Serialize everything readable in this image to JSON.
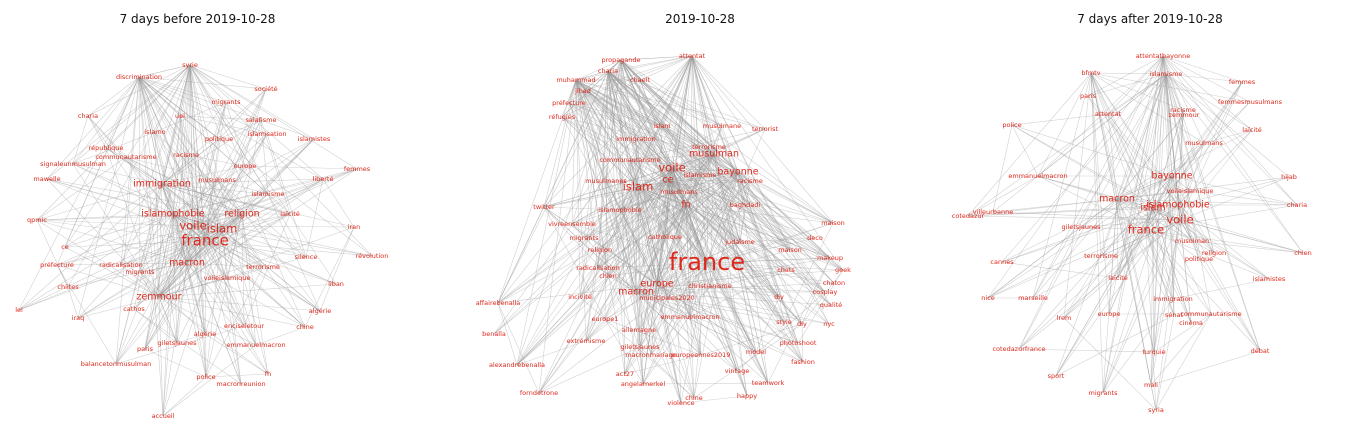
{
  "graphs": [
    {
      "title": "7 days before 2019-10-28",
      "nodes": [
        {
          "label": "syrie",
          "w": 1
        },
        {
          "label": "discrimination",
          "w": 1
        },
        {
          "label": "société",
          "w": 1
        },
        {
          "label": "migrants",
          "w": 1
        },
        {
          "label": "charia",
          "w": 1
        },
        {
          "label": "uel",
          "w": 1
        },
        {
          "label": "salafisme",
          "w": 1
        },
        {
          "label": "islamo",
          "w": 1
        },
        {
          "label": "politique",
          "w": 1
        },
        {
          "label": "islamisation",
          "w": 1
        },
        {
          "label": "islamistes",
          "w": 1
        },
        {
          "label": "république",
          "w": 1
        },
        {
          "label": "communautarisme",
          "w": 1
        },
        {
          "label": "racisme",
          "w": 1
        },
        {
          "label": "europe",
          "w": 1
        },
        {
          "label": "signaleunmusulman",
          "w": 1
        },
        {
          "label": "femmes",
          "w": 1
        },
        {
          "label": "mawelle",
          "w": 1
        },
        {
          "label": "immigration",
          "w": 2
        },
        {
          "label": "musulmans",
          "w": 1
        },
        {
          "label": "islamisme",
          "w": 1
        },
        {
          "label": "liberté",
          "w": 1
        },
        {
          "label": "laïcité",
          "w": 1
        },
        {
          "label": "islamophobie",
          "w": 2
        },
        {
          "label": "religion",
          "w": 2
        },
        {
          "label": "qpmic",
          "w": 1
        },
        {
          "label": "voile",
          "w": 3
        },
        {
          "label": "islam",
          "w": 3
        },
        {
          "label": "iran",
          "w": 1
        },
        {
          "label": "france",
          "w": 4
        },
        {
          "label": "ce",
          "w": 1
        },
        {
          "label": "préfecture",
          "w": 1
        },
        {
          "label": "radicalisation",
          "w": 1
        },
        {
          "label": "macron",
          "w": 2
        },
        {
          "label": "terrorisme",
          "w": 1
        },
        {
          "label": "silence",
          "w": 1
        },
        {
          "label": "révolution",
          "w": 1
        },
        {
          "label": "migrants",
          "w": 1
        },
        {
          "label": "voileislamique",
          "w": 1
        },
        {
          "label": "chiites",
          "w": 1
        },
        {
          "label": "zemmour",
          "w": 2
        },
        {
          "label": "liban",
          "w": 1
        },
        {
          "label": "cathos",
          "w": 1
        },
        {
          "label": "algérie",
          "w": 1
        },
        {
          "label": "iraq",
          "w": 1
        },
        {
          "label": "lei",
          "w": 1
        },
        {
          "label": "algérie",
          "w": 1
        },
        {
          "label": "enciseletour",
          "w": 1
        },
        {
          "label": "chine",
          "w": 1
        },
        {
          "label": "giletsjaunes",
          "w": 1
        },
        {
          "label": "emmanuelmacron",
          "w": 1
        },
        {
          "label": "paris",
          "w": 1
        },
        {
          "label": "balancetonmusulman",
          "w": 1
        },
        {
          "label": "fh",
          "w": 1
        },
        {
          "label": "police",
          "w": 1
        },
        {
          "label": "macronreunion",
          "w": 1
        },
        {
          "label": "accueil",
          "w": 1
        }
      ]
    },
    {
      "title": "2019-10-28",
      "nodes": [
        {
          "label": "attentat",
          "w": 1
        },
        {
          "label": "propagande",
          "w": 1
        },
        {
          "label": "charia",
          "w": 1
        },
        {
          "label": "muhammad",
          "w": 1
        },
        {
          "label": "chaelt",
          "w": 1
        },
        {
          "label": "jihad",
          "w": 1
        },
        {
          "label": "préfecture",
          "w": 1
        },
        {
          "label": "réfugiés",
          "w": 1
        },
        {
          "label": "islam",
          "w": 1
        },
        {
          "label": "immigration",
          "w": 1
        },
        {
          "label": "musulmane",
          "w": 1
        },
        {
          "label": "terrorist",
          "w": 1
        },
        {
          "label": "communautarisme",
          "w": 1
        },
        {
          "label": "terrorisme",
          "w": 1
        },
        {
          "label": "musulman",
          "w": 2
        },
        {
          "label": "voile",
          "w": 3
        },
        {
          "label": "bayonne",
          "w": 2
        },
        {
          "label": "islamisme",
          "w": 1
        },
        {
          "label": "musulmanes",
          "w": 1
        },
        {
          "label": "islam",
          "w": 3
        },
        {
          "label": "ce",
          "w": 2
        },
        {
          "label": "racisme",
          "w": 1
        },
        {
          "label": "musulmans",
          "w": 1
        },
        {
          "label": "twitter",
          "w": 1
        },
        {
          "label": "fn",
          "w": 2
        },
        {
          "label": "baghdadi",
          "w": 1
        },
        {
          "label": "islamophobie",
          "w": 1
        },
        {
          "label": "vivreensemble",
          "w": 1
        },
        {
          "label": "migrants",
          "w": 1
        },
        {
          "label": "catholique",
          "w": 1
        },
        {
          "label": "religion",
          "w": 1
        },
        {
          "label": "judaïsme",
          "w": 1
        },
        {
          "label": "maison",
          "w": 1
        },
        {
          "label": "radicalisation",
          "w": 1
        },
        {
          "label": "france",
          "w": 5
        },
        {
          "label": "chien",
          "w": 1
        },
        {
          "label": "europe",
          "w": 2
        },
        {
          "label": "macron",
          "w": 2
        },
        {
          "label": "municipales2020",
          "w": 1
        },
        {
          "label": "christianisme",
          "w": 1
        },
        {
          "label": "affairebenalla",
          "w": 1
        },
        {
          "label": "incivité",
          "w": 1
        },
        {
          "label": "benalla",
          "w": 1
        },
        {
          "label": "emmanuelmacron",
          "w": 1
        },
        {
          "label": "europe1",
          "w": 1
        },
        {
          "label": "extrémisme",
          "w": 1
        },
        {
          "label": "allemagne",
          "w": 1
        },
        {
          "label": "giletsjaunes",
          "w": 1
        },
        {
          "label": "alexandrebenalla",
          "w": 1
        },
        {
          "label": "europeennes2019",
          "w": 1
        },
        {
          "label": "macronmariage",
          "w": 1
        },
        {
          "label": "act27",
          "w": 1
        },
        {
          "label": "angelamerkel",
          "w": 1
        },
        {
          "label": "forndetrone",
          "w": 1
        },
        {
          "label": "violence",
          "w": 1
        },
        {
          "label": "chine",
          "w": 1
        },
        {
          "label": "happy",
          "w": 1
        },
        {
          "label": "teamwork",
          "w": 1
        },
        {
          "label": "vintage",
          "w": 1
        },
        {
          "label": "model",
          "w": 1
        },
        {
          "label": "photoshoot",
          "w": 1
        },
        {
          "label": "fashion",
          "w": 1
        },
        {
          "label": "style",
          "w": 1
        },
        {
          "label": "nyc",
          "w": 1
        },
        {
          "label": "qualité",
          "w": 1
        },
        {
          "label": "cosplay",
          "w": 1
        },
        {
          "label": "makeup",
          "w": 1
        },
        {
          "label": "geek",
          "w": 1
        },
        {
          "label": "chaton",
          "w": 1
        },
        {
          "label": "chats",
          "w": 1
        },
        {
          "label": "diy",
          "w": 1
        },
        {
          "label": "diy",
          "w": 1
        },
        {
          "label": "deco",
          "w": 1
        },
        {
          "label": "maison",
          "w": 1
        }
      ]
    },
    {
      "title": "7 days after 2019-10-28",
      "nodes": [
        {
          "label": "attentatbayonne",
          "w": 1
        },
        {
          "label": "bfmtv",
          "w": 1
        },
        {
          "label": "islamisme",
          "w": 1
        },
        {
          "label": "femmes",
          "w": 1
        },
        {
          "label": "paris",
          "w": 1
        },
        {
          "label": "racisme",
          "w": 1
        },
        {
          "label": "zemmour",
          "w": 1
        },
        {
          "label": "femmesmusulmans",
          "w": 1
        },
        {
          "label": "police",
          "w": 1
        },
        {
          "label": "laïcité",
          "w": 1
        },
        {
          "label": "attentat",
          "w": 1
        },
        {
          "label": "musulmans",
          "w": 1
        },
        {
          "label": "emmanuelmacron",
          "w": 1
        },
        {
          "label": "hijab",
          "w": 1
        },
        {
          "label": "bayonne",
          "w": 2
        },
        {
          "label": "voileislamique",
          "w": 1
        },
        {
          "label": "macron",
          "w": 2
        },
        {
          "label": "islam",
          "w": 2
        },
        {
          "label": "islamophobie",
          "w": 2
        },
        {
          "label": "charia",
          "w": 1
        },
        {
          "label": "voile",
          "w": 3
        },
        {
          "label": "villeurbanne",
          "w": 1
        },
        {
          "label": "cotedazur",
          "w": 1
        },
        {
          "label": "giletsjaunes",
          "w": 1
        },
        {
          "label": "france",
          "w": 3
        },
        {
          "label": "musulman",
          "w": 1
        },
        {
          "label": "religion",
          "w": 1
        },
        {
          "label": "chien",
          "w": 1
        },
        {
          "label": "terrorisme",
          "w": 1
        },
        {
          "label": "politique",
          "w": 1
        },
        {
          "label": "cannes",
          "w": 1
        },
        {
          "label": "laïcité",
          "w": 1
        },
        {
          "label": "islamistes",
          "w": 1
        },
        {
          "label": "nice",
          "w": 1
        },
        {
          "label": "marseille",
          "w": 1
        },
        {
          "label": "immigration",
          "w": 1
        },
        {
          "label": "communautarisme",
          "w": 1
        },
        {
          "label": "europe",
          "w": 1
        },
        {
          "label": "lrem",
          "w": 1
        },
        {
          "label": "sénat",
          "w": 1
        },
        {
          "label": "cinéma",
          "w": 1
        },
        {
          "label": "cotedazurfrance",
          "w": 1
        },
        {
          "label": "turquie",
          "w": 1
        },
        {
          "label": "débat",
          "w": 1
        },
        {
          "label": "sport",
          "w": 1
        },
        {
          "label": "migrants",
          "w": 1
        },
        {
          "label": "mali",
          "w": 1
        },
        {
          "label": "syria",
          "w": 1
        }
      ]
    }
  ]
}
